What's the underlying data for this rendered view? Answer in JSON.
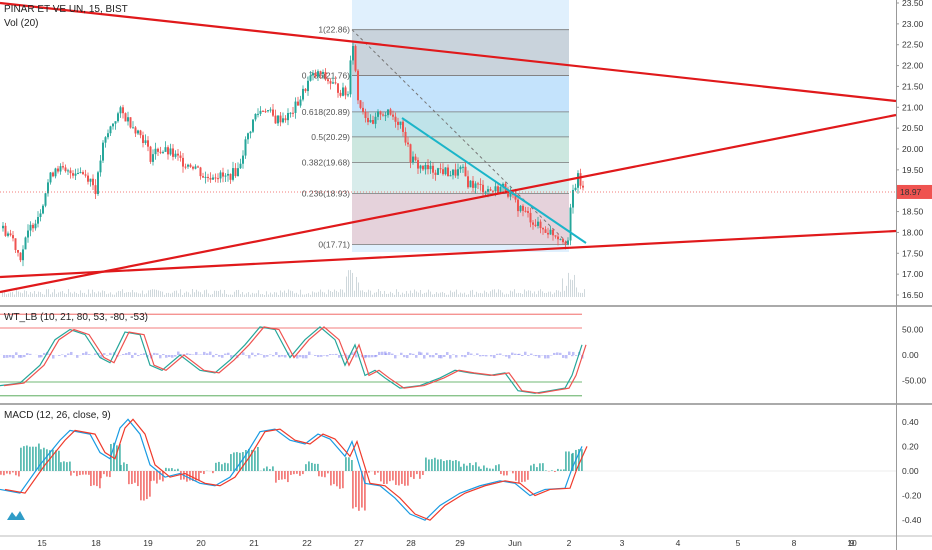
{
  "header": {
    "symbol_line": "PINAR ET VE UN, 15, BIST",
    "volume_label": "Vol (20)"
  },
  "wt_pane": {
    "label": "WT_LB (10, 21, 80, 53, -80, -53)"
  },
  "macd_pane": {
    "label": "MACD (12, 26, close, 9)"
  },
  "colors": {
    "up": "#26a69a",
    "down": "#ef5350",
    "trendline": "#e0191b",
    "cyan_line": "#1bb5c9",
    "fib_blue": "#2196f3",
    "macd_line": "#1a9be2",
    "signal_line": "#ef3b2c"
  },
  "last_price": "18.97",
  "chart_data": [
    {
      "type": "candlestick",
      "pane": "price",
      "y_ticks": [
        "23.50",
        "23.00",
        "22.50",
        "22.00",
        "21.50",
        "21.00",
        "20.50",
        "20.00",
        "19.50",
        "19.00",
        "18.50",
        "18.00",
        "17.50",
        "17.00",
        "16.50"
      ],
      "ylim": [
        16.5,
        23.6
      ],
      "x_ticks": [
        "15",
        "18",
        "19",
        "20",
        "21",
        "22",
        "27",
        "28",
        "29",
        "Jun",
        "2",
        "3",
        "4",
        "5",
        "8",
        "9",
        "10"
      ],
      "fib_levels": [
        {
          "label": "1(22.86)",
          "value": 22.86
        },
        {
          "label": "0.786(21.76)",
          "value": 21.76
        },
        {
          "label": "0.618(20.89)",
          "value": 20.89
        },
        {
          "label": "0.5(20.29)",
          "value": 20.29
        },
        {
          "label": "0.382(19.68)",
          "value": 19.68
        },
        {
          "label": "0.236(18.93)",
          "value": 18.93
        },
        {
          "label": "0(17.71)",
          "value": 17.71
        }
      ],
      "last_value": 18.97
    },
    {
      "type": "line",
      "pane": "WT_LB",
      "y_ticks": [
        "50.00",
        "0.00",
        "-50.00"
      ],
      "levels": [
        80,
        53,
        -53,
        -80
      ]
    },
    {
      "type": "line",
      "pane": "MACD",
      "y_ticks": [
        "0.40",
        "0.20",
        "0.00",
        "-0.20",
        "-0.40"
      ]
    }
  ]
}
